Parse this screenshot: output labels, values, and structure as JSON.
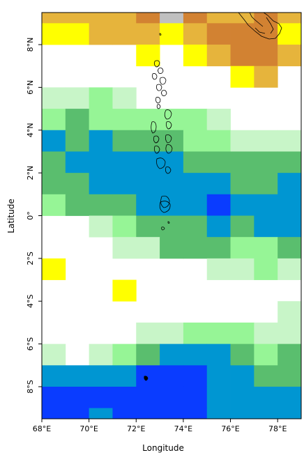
{
  "axes": {
    "xlabel": "Longitude",
    "ylabel": "Latitude",
    "xlim": [
      68,
      79
    ],
    "ylim": [
      -9.5,
      9.5
    ],
    "x_ticks": [
      {
        "value": 68,
        "label": "68°E"
      },
      {
        "value": 70,
        "label": "70°E"
      },
      {
        "value": 72,
        "label": "72°E"
      },
      {
        "value": 74,
        "label": "74°E"
      },
      {
        "value": 76,
        "label": "76°E"
      },
      {
        "value": 78,
        "label": "78°E"
      }
    ],
    "y_ticks": [
      {
        "value": 8,
        "label": "8°N"
      },
      {
        "value": 6,
        "label": "6°N"
      },
      {
        "value": 4,
        "label": "4°N"
      },
      {
        "value": 2,
        "label": "2°N"
      },
      {
        "value": 0,
        "label": "0°"
      },
      {
        "value": -2,
        "label": "2°S"
      },
      {
        "value": -4,
        "label": "4°S"
      },
      {
        "value": -6,
        "label": "6°S"
      },
      {
        "value": -8,
        "label": "8°S"
      }
    ]
  },
  "palette": {
    "W": "#ffffff",
    "Y": "#ffff00",
    "O": "#e6b43c",
    "D": "#d28232",
    "S": "#c0c0c0",
    "P": "#c8f5c8",
    "L": "#96f596",
    "G": "#5abe6e",
    "C": "#0096d2",
    "B": "#0a3cff"
  },
  "chart_data": {
    "type": "heatmap",
    "lon_edges": [
      68,
      69,
      70,
      71,
      72,
      73,
      74,
      75,
      76,
      77,
      78,
      79
    ],
    "lat_edges": [
      9.5,
      9,
      8,
      7,
      6,
      5,
      4,
      3,
      2,
      1,
      0,
      -1,
      -2,
      -3,
      -4,
      -5,
      -6,
      -7,
      -8,
      -9,
      -9.5
    ],
    "cells": [
      "OOOODSDOODO",
      "YYOOOYODDDY",
      "WWWWYWYODDO",
      "WWWWWWWWYOW",
      "PPLPWWWWWWW",
      "LGLLLLLPWWW",
      "CGCGGGLLPPP",
      "GCCCCCGGGGG",
      "GGCCCCCCGGC",
      "LGGGCCCBCCC",
      "WWPLGGGCGCC",
      "WWWPPGGGLLG",
      "YWWWWWWPPLP",
      "WWWYWWWWWWW",
      "WWWWWWWWWWP",
      "WWWWPPLLLPP",
      "PWPLGCCCGLG",
      "CCCCBBBCCGG",
      "BBBBBBBCCCC",
      "BBCBBBBCCCC"
    ]
  }
}
